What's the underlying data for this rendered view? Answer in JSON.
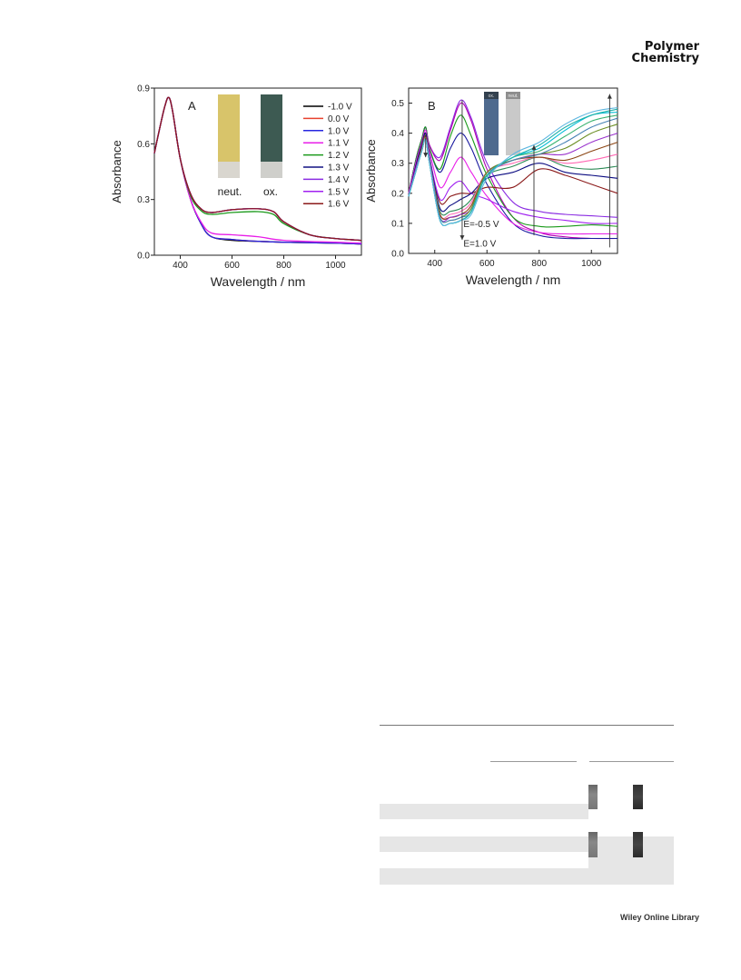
{
  "journal": {
    "line1": "Polymer",
    "line2": "Chemistry"
  },
  "footer": {
    "text": "Wiley Online Library"
  },
  "panel_a": {
    "label": "A",
    "photo_labels": [
      "neut.",
      "ox."
    ],
    "legend": [
      "-1.0 V",
      "0.0 V",
      "1.0 V",
      "1.1 V",
      "1.2 V",
      "1.3 V",
      "1.4 V",
      "1.5 V",
      "1.6 V"
    ],
    "colors": [
      "#000000",
      "#e8412f",
      "#2727e0",
      "#e81ee8",
      "#1c9a1c",
      "#121284",
      "#8a2be2",
      "#a020f0",
      "#8b1a1a"
    ]
  },
  "panel_b": {
    "label": "B",
    "photo_labels": [
      "ox.",
      "neut."
    ],
    "annotations": [
      "E=-0.5 V",
      "E=1.0 V"
    ]
  },
  "chart_data": [
    {
      "type": "line",
      "xlabel": "Wavelength / nm",
      "ylabel": "Absorbance",
      "xlim": [
        300,
        1100
      ],
      "ylim": [
        0,
        0.9
      ],
      "xticks": [
        400,
        600,
        800,
        1000
      ],
      "yticks": [
        0.0,
        0.3,
        0.6,
        0.9
      ],
      "legend_position": "right",
      "series": [
        {
          "name": "-1.0 V",
          "x": [
            300,
            320,
            340,
            355,
            370,
            400,
            440,
            480,
            520,
            600,
            700,
            800,
            1000,
            1100
          ],
          "y": [
            0.55,
            0.68,
            0.8,
            0.85,
            0.78,
            0.52,
            0.3,
            0.17,
            0.1,
            0.08,
            0.075,
            0.07,
            0.065,
            0.06
          ]
        },
        {
          "name": "0.0 V",
          "x": [
            300,
            320,
            340,
            355,
            370,
            400,
            440,
            480,
            520,
            600,
            700,
            800,
            1000,
            1100
          ],
          "y": [
            0.55,
            0.68,
            0.8,
            0.85,
            0.78,
            0.52,
            0.3,
            0.17,
            0.1,
            0.085,
            0.075,
            0.07,
            0.065,
            0.06
          ]
        },
        {
          "name": "1.0 V",
          "x": [
            300,
            320,
            340,
            355,
            370,
            400,
            440,
            480,
            520,
            600,
            700,
            800,
            1000,
            1100
          ],
          "y": [
            0.55,
            0.68,
            0.8,
            0.85,
            0.78,
            0.52,
            0.3,
            0.17,
            0.1,
            0.085,
            0.075,
            0.07,
            0.065,
            0.06
          ]
        },
        {
          "name": "1.1 V",
          "x": [
            300,
            320,
            340,
            355,
            370,
            400,
            440,
            480,
            520,
            600,
            700,
            800,
            1000,
            1100
          ],
          "y": [
            0.55,
            0.68,
            0.8,
            0.85,
            0.78,
            0.52,
            0.3,
            0.18,
            0.12,
            0.11,
            0.1,
            0.08,
            0.07,
            0.065
          ]
        },
        {
          "name": "1.2 V",
          "x": [
            300,
            320,
            340,
            355,
            370,
            400,
            440,
            480,
            520,
            600,
            700,
            760,
            800,
            900,
            1000,
            1100
          ],
          "y": [
            0.55,
            0.68,
            0.8,
            0.85,
            0.78,
            0.52,
            0.32,
            0.24,
            0.22,
            0.23,
            0.235,
            0.22,
            0.17,
            0.11,
            0.09,
            0.08
          ]
        },
        {
          "name": "1.3 V",
          "x": [
            300,
            320,
            340,
            355,
            370,
            400,
            440,
            480,
            520,
            600,
            700,
            760,
            800,
            900,
            1000,
            1100
          ],
          "y": [
            0.55,
            0.68,
            0.8,
            0.85,
            0.78,
            0.52,
            0.33,
            0.25,
            0.23,
            0.245,
            0.25,
            0.235,
            0.18,
            0.11,
            0.09,
            0.08
          ]
        },
        {
          "name": "1.4 V",
          "x": [
            300,
            320,
            340,
            355,
            370,
            400,
            440,
            480,
            520,
            600,
            700,
            760,
            800,
            900,
            1000,
            1100
          ],
          "y": [
            0.55,
            0.68,
            0.8,
            0.85,
            0.78,
            0.52,
            0.33,
            0.25,
            0.23,
            0.245,
            0.25,
            0.235,
            0.18,
            0.11,
            0.09,
            0.08
          ]
        },
        {
          "name": "1.5 V",
          "x": [
            300,
            320,
            340,
            355,
            370,
            400,
            440,
            480,
            520,
            600,
            700,
            760,
            800,
            900,
            1000,
            1100
          ],
          "y": [
            0.55,
            0.68,
            0.8,
            0.85,
            0.78,
            0.52,
            0.33,
            0.25,
            0.23,
            0.245,
            0.25,
            0.235,
            0.18,
            0.11,
            0.09,
            0.08
          ]
        },
        {
          "name": "1.6 V",
          "x": [
            300,
            320,
            340,
            355,
            370,
            400,
            440,
            480,
            520,
            600,
            700,
            760,
            800,
            900,
            1000,
            1100
          ],
          "y": [
            0.55,
            0.68,
            0.8,
            0.85,
            0.78,
            0.52,
            0.33,
            0.25,
            0.23,
            0.245,
            0.25,
            0.235,
            0.18,
            0.11,
            0.09,
            0.08
          ]
        }
      ]
    },
    {
      "type": "line",
      "xlabel": "Wavelength / nm",
      "ylabel": "Absorbance",
      "xlim": [
        300,
        1100
      ],
      "ylim": [
        0,
        0.55
      ],
      "xticks": [
        400,
        600,
        800,
        1000
      ],
      "yticks": [
        0.0,
        0.1,
        0.2,
        0.3,
        0.4,
        0.5
      ],
      "colors": [
        "#8a2be2",
        "#b000b0",
        "#1a1aa0",
        "#1a9a1a",
        "#e81ee8",
        "#8b1a1a",
        "#a020f0",
        "#0a0a80",
        "#2e8b57",
        "#ff69b4",
        "#8b4513",
        "#9932cc",
        "#6b8e23",
        "#4682b4",
        "#3cb371",
        "#00bcd4",
        "#20b2aa",
        "#5fb7e0"
      ],
      "series": [
        {
          "x": [
            300,
            330,
            350,
            365,
            380,
            420,
            460,
            500,
            540,
            600,
            700,
            800,
            900,
            1000,
            1100
          ],
          "y": [
            0.2,
            0.32,
            0.38,
            0.42,
            0.36,
            0.32,
            0.42,
            0.51,
            0.45,
            0.3,
            0.17,
            0.14,
            0.13,
            0.125,
            0.12
          ]
        },
        {
          "x": [
            300,
            330,
            350,
            365,
            380,
            420,
            460,
            500,
            540,
            600,
            700,
            800,
            900,
            1000,
            1100
          ],
          "y": [
            0.2,
            0.32,
            0.38,
            0.42,
            0.36,
            0.31,
            0.41,
            0.5,
            0.44,
            0.28,
            0.12,
            0.07,
            0.055,
            0.05,
            0.05
          ]
        },
        {
          "x": [
            300,
            330,
            350,
            365,
            380,
            420,
            460,
            500,
            540,
            600,
            700,
            800,
            900,
            1000,
            1100
          ],
          "y": [
            0.2,
            0.32,
            0.38,
            0.42,
            0.35,
            0.27,
            0.35,
            0.4,
            0.35,
            0.23,
            0.1,
            0.06,
            0.05,
            0.05,
            0.05
          ]
        },
        {
          "x": [
            300,
            330,
            350,
            365,
            380,
            420,
            460,
            500,
            540,
            600,
            700,
            800,
            900,
            1000,
            1100
          ],
          "y": [
            0.2,
            0.32,
            0.38,
            0.42,
            0.35,
            0.28,
            0.39,
            0.46,
            0.39,
            0.26,
            0.12,
            0.09,
            0.09,
            0.095,
            0.09
          ]
        },
        {
          "x": [
            300,
            330,
            350,
            365,
            380,
            420,
            460,
            500,
            540,
            600,
            700,
            800,
            900,
            1000,
            1100
          ],
          "y": [
            0.2,
            0.31,
            0.37,
            0.41,
            0.34,
            0.22,
            0.27,
            0.32,
            0.27,
            0.19,
            0.1,
            0.07,
            0.065,
            0.065,
            0.065
          ]
        },
        {
          "x": [
            300,
            330,
            350,
            365,
            380,
            420,
            460,
            500,
            540,
            600,
            700,
            800,
            900,
            1000,
            1100
          ],
          "y": [
            0.19,
            0.3,
            0.36,
            0.4,
            0.32,
            0.17,
            0.19,
            0.2,
            0.2,
            0.22,
            0.22,
            0.28,
            0.26,
            0.23,
            0.2
          ]
        },
        {
          "x": [
            300,
            330,
            350,
            365,
            380,
            420,
            460,
            500,
            540,
            600,
            700,
            800,
            900,
            1000,
            1100
          ],
          "y": [
            0.19,
            0.3,
            0.36,
            0.4,
            0.32,
            0.18,
            0.22,
            0.24,
            0.2,
            0.18,
            0.14,
            0.12,
            0.11,
            0.1,
            0.1
          ]
        },
        {
          "x": [
            300,
            330,
            350,
            365,
            380,
            420,
            460,
            500,
            540,
            600,
            700,
            800,
            900,
            1000,
            1100
          ],
          "y": [
            0.19,
            0.3,
            0.36,
            0.4,
            0.32,
            0.15,
            0.16,
            0.18,
            0.2,
            0.25,
            0.27,
            0.3,
            0.27,
            0.26,
            0.25
          ]
        },
        {
          "x": [
            300,
            330,
            350,
            365,
            380,
            420,
            460,
            500,
            540,
            600,
            700,
            800,
            900,
            1000,
            1100
          ],
          "y": [
            0.19,
            0.29,
            0.35,
            0.39,
            0.31,
            0.14,
            0.14,
            0.15,
            0.18,
            0.26,
            0.29,
            0.32,
            0.29,
            0.28,
            0.29
          ]
        },
        {
          "x": [
            300,
            330,
            350,
            365,
            380,
            420,
            460,
            500,
            540,
            600,
            700,
            800,
            900,
            1000,
            1100
          ],
          "y": [
            0.19,
            0.29,
            0.35,
            0.39,
            0.31,
            0.13,
            0.13,
            0.14,
            0.17,
            0.27,
            0.3,
            0.32,
            0.3,
            0.31,
            0.33
          ]
        },
        {
          "x": [
            300,
            330,
            350,
            365,
            380,
            420,
            460,
            500,
            540,
            600,
            700,
            800,
            900,
            1000,
            1100
          ],
          "y": [
            0.19,
            0.29,
            0.35,
            0.39,
            0.3,
            0.13,
            0.12,
            0.13,
            0.16,
            0.27,
            0.31,
            0.32,
            0.31,
            0.34,
            0.37
          ]
        },
        {
          "x": [
            300,
            330,
            350,
            365,
            380,
            420,
            460,
            500,
            540,
            600,
            700,
            800,
            900,
            1000,
            1100
          ],
          "y": [
            0.19,
            0.29,
            0.34,
            0.38,
            0.3,
            0.12,
            0.12,
            0.13,
            0.15,
            0.27,
            0.31,
            0.33,
            0.33,
            0.37,
            0.4
          ]
        },
        {
          "x": [
            300,
            330,
            350,
            365,
            380,
            420,
            460,
            500,
            540,
            600,
            700,
            800,
            900,
            1000,
            1100
          ],
          "y": [
            0.19,
            0.28,
            0.34,
            0.38,
            0.3,
            0.12,
            0.11,
            0.12,
            0.15,
            0.27,
            0.31,
            0.33,
            0.35,
            0.4,
            0.43
          ]
        },
        {
          "x": [
            300,
            330,
            350,
            365,
            380,
            420,
            460,
            500,
            540,
            600,
            700,
            800,
            900,
            1000,
            1100
          ],
          "y": [
            0.19,
            0.28,
            0.34,
            0.38,
            0.3,
            0.12,
            0.11,
            0.12,
            0.14,
            0.26,
            0.31,
            0.33,
            0.37,
            0.42,
            0.45
          ]
        },
        {
          "x": [
            300,
            330,
            350,
            365,
            380,
            420,
            460,
            500,
            540,
            600,
            700,
            800,
            900,
            1000,
            1100
          ],
          "y": [
            0.19,
            0.28,
            0.34,
            0.38,
            0.3,
            0.11,
            0.1,
            0.11,
            0.14,
            0.26,
            0.32,
            0.34,
            0.39,
            0.44,
            0.46
          ]
        },
        {
          "x": [
            300,
            330,
            350,
            365,
            380,
            420,
            460,
            500,
            540,
            600,
            700,
            800,
            900,
            1000,
            1100
          ],
          "y": [
            0.19,
            0.28,
            0.34,
            0.38,
            0.3,
            0.11,
            0.1,
            0.11,
            0.14,
            0.26,
            0.32,
            0.35,
            0.41,
            0.46,
            0.47
          ]
        },
        {
          "x": [
            300,
            330,
            350,
            365,
            380,
            420,
            460,
            500,
            540,
            600,
            700,
            800,
            900,
            1000,
            1100
          ],
          "y": [
            0.19,
            0.28,
            0.34,
            0.38,
            0.3,
            0.11,
            0.1,
            0.11,
            0.14,
            0.26,
            0.32,
            0.36,
            0.42,
            0.46,
            0.48
          ]
        },
        {
          "x": [
            300,
            330,
            350,
            365,
            380,
            420,
            460,
            500,
            540,
            600,
            700,
            800,
            900,
            1000,
            1100
          ],
          "y": [
            0.19,
            0.28,
            0.34,
            0.38,
            0.3,
            0.11,
            0.1,
            0.11,
            0.13,
            0.25,
            0.33,
            0.37,
            0.43,
            0.47,
            0.485
          ]
        }
      ]
    }
  ]
}
